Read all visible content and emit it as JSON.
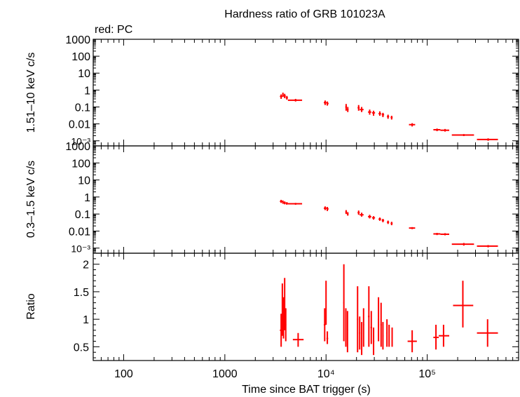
{
  "colors": {
    "series": "#ff0000",
    "axis": "#000000",
    "background": "#ffffff"
  },
  "chart_data": {
    "title": "Hardness ratio of GRB 101023A",
    "subtitle": "red: PC",
    "xlabel": "Time since BAT trigger (s)",
    "x_scale": "log",
    "xlim": [
      50,
      800000
    ],
    "x_ticks": [
      "100",
      "1000",
      "10⁴",
      "10⁵"
    ],
    "panels": [
      {
        "id": "hard",
        "type": "scatter",
        "ylabel": "1.51–10 keV c/s",
        "y_scale": "log",
        "ylim": [
          0.0005,
          1000
        ],
        "y_ticks": [
          "1000",
          "100",
          "10",
          "1",
          "0.1",
          "0.01",
          "10⁻³"
        ],
        "points": [
          {
            "x": 3600,
            "xlo": 3500,
            "xhi": 3700,
            "y": 0.42,
            "ylo": 0.3,
            "yhi": 0.55
          },
          {
            "x": 3750,
            "xlo": 3700,
            "xhi": 3800,
            "y": 0.55,
            "ylo": 0.4,
            "yhi": 0.7
          },
          {
            "x": 3900,
            "xlo": 3800,
            "xhi": 4000,
            "y": 0.45,
            "ylo": 0.33,
            "yhi": 0.6
          },
          {
            "x": 4100,
            "xlo": 4000,
            "xhi": 4200,
            "y": 0.35,
            "ylo": 0.27,
            "yhi": 0.45
          },
          {
            "x": 5000,
            "xlo": 4200,
            "xhi": 5800,
            "y": 0.25,
            "ylo": 0.21,
            "yhi": 0.3
          },
          {
            "x": 9800,
            "xlo": 9500,
            "xhi": 10100,
            "y": 0.18,
            "ylo": 0.13,
            "yhi": 0.24
          },
          {
            "x": 10300,
            "xlo": 10100,
            "xhi": 10600,
            "y": 0.16,
            "ylo": 0.12,
            "yhi": 0.21
          },
          {
            "x": 15800,
            "xlo": 15500,
            "xhi": 16100,
            "y": 0.1,
            "ylo": 0.06,
            "yhi": 0.15
          },
          {
            "x": 16400,
            "xlo": 16100,
            "xhi": 16700,
            "y": 0.07,
            "ylo": 0.05,
            "yhi": 0.1
          },
          {
            "x": 21000,
            "xlo": 20500,
            "xhi": 21500,
            "y": 0.09,
            "ylo": 0.06,
            "yhi": 0.13
          },
          {
            "x": 22500,
            "xlo": 21500,
            "xhi": 23500,
            "y": 0.07,
            "ylo": 0.05,
            "yhi": 0.1
          },
          {
            "x": 27000,
            "xlo": 26000,
            "xhi": 28000,
            "y": 0.05,
            "ylo": 0.035,
            "yhi": 0.07
          },
          {
            "x": 29500,
            "xlo": 28500,
            "xhi": 30500,
            "y": 0.045,
            "ylo": 0.03,
            "yhi": 0.06
          },
          {
            "x": 34000,
            "xlo": 33000,
            "xhi": 35000,
            "y": 0.04,
            "ylo": 0.03,
            "yhi": 0.055
          },
          {
            "x": 36500,
            "xlo": 35500,
            "xhi": 37500,
            "y": 0.035,
            "ylo": 0.025,
            "yhi": 0.045
          },
          {
            "x": 41000,
            "xlo": 40000,
            "xhi": 42000,
            "y": 0.027,
            "ylo": 0.02,
            "yhi": 0.035
          },
          {
            "x": 44500,
            "xlo": 43500,
            "xhi": 45500,
            "y": 0.024,
            "ylo": 0.018,
            "yhi": 0.03
          },
          {
            "x": 71000,
            "xlo": 66000,
            "xhi": 76000,
            "y": 0.009,
            "ylo": 0.007,
            "yhi": 0.011
          },
          {
            "x": 125000,
            "xlo": 115000,
            "xhi": 135000,
            "y": 0.0045,
            "ylo": 0.0037,
            "yhi": 0.0053
          },
          {
            "x": 150000,
            "xlo": 135000,
            "xhi": 165000,
            "y": 0.0042,
            "ylo": 0.0035,
            "yhi": 0.005
          },
          {
            "x": 230000,
            "xlo": 175000,
            "xhi": 290000,
            "y": 0.0022,
            "ylo": 0.0019,
            "yhi": 0.0025
          },
          {
            "x": 400000,
            "xlo": 310000,
            "xhi": 500000,
            "y": 0.0012,
            "ylo": 0.001,
            "yhi": 0.0014
          }
        ]
      },
      {
        "id": "soft",
        "type": "scatter",
        "ylabel": "0.3–1.5 keV c/s",
        "y_scale": "log",
        "ylim": [
          0.0005,
          1000
        ],
        "y_ticks": [
          "1000",
          "100",
          "10",
          "1",
          "0.1",
          "0.01",
          "10⁻³"
        ],
        "points": [
          {
            "x": 3600,
            "xlo": 3500,
            "xhi": 3700,
            "y": 0.55,
            "ylo": 0.45,
            "yhi": 0.68
          },
          {
            "x": 3750,
            "xlo": 3700,
            "xhi": 3800,
            "y": 0.5,
            "ylo": 0.4,
            "yhi": 0.62
          },
          {
            "x": 3900,
            "xlo": 3800,
            "xhi": 4000,
            "y": 0.45,
            "ylo": 0.37,
            "yhi": 0.55
          },
          {
            "x": 4100,
            "xlo": 4000,
            "xhi": 4200,
            "y": 0.42,
            "ylo": 0.35,
            "yhi": 0.5
          },
          {
            "x": 5000,
            "xlo": 4200,
            "xhi": 5800,
            "y": 0.4,
            "ylo": 0.35,
            "yhi": 0.45
          },
          {
            "x": 9800,
            "xlo": 9500,
            "xhi": 10100,
            "y": 0.22,
            "ylo": 0.17,
            "yhi": 0.28
          },
          {
            "x": 10300,
            "xlo": 10100,
            "xhi": 10600,
            "y": 0.2,
            "ylo": 0.15,
            "yhi": 0.26
          },
          {
            "x": 15800,
            "xlo": 15500,
            "xhi": 16100,
            "y": 0.13,
            "ylo": 0.1,
            "yhi": 0.17
          },
          {
            "x": 16400,
            "xlo": 16100,
            "xhi": 16700,
            "y": 0.1,
            "ylo": 0.08,
            "yhi": 0.13
          },
          {
            "x": 21000,
            "xlo": 20500,
            "xhi": 21500,
            "y": 0.12,
            "ylo": 0.09,
            "yhi": 0.16
          },
          {
            "x": 22500,
            "xlo": 21500,
            "xhi": 23500,
            "y": 0.09,
            "ylo": 0.07,
            "yhi": 0.12
          },
          {
            "x": 27000,
            "xlo": 26000,
            "xhi": 28000,
            "y": 0.07,
            "ylo": 0.055,
            "yhi": 0.09
          },
          {
            "x": 29500,
            "xlo": 28500,
            "xhi": 30500,
            "y": 0.06,
            "ylo": 0.047,
            "yhi": 0.075
          },
          {
            "x": 34000,
            "xlo": 33000,
            "xhi": 35000,
            "y": 0.05,
            "ylo": 0.04,
            "yhi": 0.062
          },
          {
            "x": 36500,
            "xlo": 35500,
            "xhi": 37500,
            "y": 0.042,
            "ylo": 0.033,
            "yhi": 0.052
          },
          {
            "x": 41000,
            "xlo": 40000,
            "xhi": 42000,
            "y": 0.033,
            "ylo": 0.026,
            "yhi": 0.041
          },
          {
            "x": 44500,
            "xlo": 43500,
            "xhi": 45500,
            "y": 0.028,
            "ylo": 0.022,
            "yhi": 0.035
          },
          {
            "x": 71000,
            "xlo": 66000,
            "xhi": 76000,
            "y": 0.015,
            "ylo": 0.013,
            "yhi": 0.017
          },
          {
            "x": 125000,
            "xlo": 115000,
            "xhi": 135000,
            "y": 0.0068,
            "ylo": 0.0058,
            "yhi": 0.0078
          },
          {
            "x": 150000,
            "xlo": 135000,
            "xhi": 165000,
            "y": 0.0065,
            "ylo": 0.0056,
            "yhi": 0.0075
          },
          {
            "x": 230000,
            "xlo": 175000,
            "xhi": 290000,
            "y": 0.0017,
            "ylo": 0.0014,
            "yhi": 0.002
          },
          {
            "x": 400000,
            "xlo": 310000,
            "xhi": 500000,
            "y": 0.0013,
            "ylo": 0.0011,
            "yhi": 0.0015
          }
        ]
      },
      {
        "id": "ratio",
        "type": "scatter",
        "ylabel": "Ratio",
        "y_scale": "linear",
        "ylim": [
          0.25,
          2.2
        ],
        "y_ticks": [
          "2",
          "1.5",
          "1",
          "0.5"
        ],
        "y_tick_values": [
          2,
          1.5,
          1,
          0.5
        ],
        "points": [
          {
            "x": 3600,
            "xlo": 3500,
            "xhi": 3700,
            "y": 0.8,
            "ylo": 0.5,
            "yhi": 1.1
          },
          {
            "x": 3700,
            "xlo": 3650,
            "xhi": 3750,
            "y": 1.25,
            "ylo": 0.7,
            "yhi": 1.65
          },
          {
            "x": 3800,
            "xlo": 3750,
            "xhi": 3850,
            "y": 1.0,
            "ylo": 0.65,
            "yhi": 1.4
          },
          {
            "x": 3900,
            "xlo": 3850,
            "xhi": 3950,
            "y": 1.3,
            "ylo": 0.8,
            "yhi": 1.75
          },
          {
            "x": 4000,
            "xlo": 3950,
            "xhi": 4050,
            "y": 0.9,
            "ylo": 0.6,
            "yhi": 1.2
          },
          {
            "x": 5300,
            "xlo": 4700,
            "xhi": 6000,
            "y": 0.63,
            "ylo": 0.5,
            "yhi": 0.75
          },
          {
            "x": 9700,
            "xlo": 9500,
            "xhi": 9900,
            "y": 0.9,
            "ylo": 0.6,
            "yhi": 1.2
          },
          {
            "x": 10000,
            "xlo": 9900,
            "xhi": 10100,
            "y": 1.3,
            "ylo": 0.9,
            "yhi": 1.7
          },
          {
            "x": 10300,
            "xlo": 10100,
            "xhi": 10500,
            "y": 0.65,
            "ylo": 0.55,
            "yhi": 0.78
          },
          {
            "x": 15000,
            "xlo": 14800,
            "xhi": 15200,
            "y": 1.3,
            "ylo": 0.6,
            "yhi": 2.0
          },
          {
            "x": 15700,
            "xlo": 15500,
            "xhi": 15900,
            "y": 0.85,
            "ylo": 0.5,
            "yhi": 1.2
          },
          {
            "x": 16300,
            "xlo": 16100,
            "xhi": 16500,
            "y": 0.8,
            "ylo": 0.4,
            "yhi": 1.15
          },
          {
            "x": 20500,
            "xlo": 20200,
            "xhi": 20800,
            "y": 1.0,
            "ylo": 0.4,
            "yhi": 1.6
          },
          {
            "x": 21500,
            "xlo": 21200,
            "xhi": 21800,
            "y": 0.75,
            "ylo": 0.45,
            "yhi": 1.05
          },
          {
            "x": 22500,
            "xlo": 22200,
            "xhi": 22800,
            "y": 0.65,
            "ylo": 0.35,
            "yhi": 0.95
          },
          {
            "x": 23500,
            "xlo": 23200,
            "xhi": 23800,
            "y": 0.9,
            "ylo": 0.5,
            "yhi": 1.2
          },
          {
            "x": 26500,
            "xlo": 26000,
            "xhi": 27000,
            "y": 1.05,
            "ylo": 0.5,
            "yhi": 1.6
          },
          {
            "x": 28000,
            "xlo": 27500,
            "xhi": 28500,
            "y": 0.85,
            "ylo": 0.55,
            "yhi": 1.15
          },
          {
            "x": 29500,
            "xlo": 29000,
            "xhi": 30000,
            "y": 0.6,
            "ylo": 0.35,
            "yhi": 0.85
          },
          {
            "x": 33000,
            "xlo": 32500,
            "xhi": 33500,
            "y": 1.0,
            "ylo": 0.6,
            "yhi": 1.4
          },
          {
            "x": 35000,
            "xlo": 34500,
            "xhi": 35500,
            "y": 0.9,
            "ylo": 0.5,
            "yhi": 1.3
          },
          {
            "x": 36500,
            "xlo": 36000,
            "xhi": 37000,
            "y": 0.7,
            "ylo": 0.45,
            "yhi": 0.95
          },
          {
            "x": 40000,
            "xlo": 39500,
            "xhi": 40500,
            "y": 0.75,
            "ylo": 0.5,
            "yhi": 1.0
          },
          {
            "x": 42000,
            "xlo": 41500,
            "xhi": 42500,
            "y": 0.7,
            "ylo": 0.5,
            "yhi": 0.9
          },
          {
            "x": 45000,
            "xlo": 44500,
            "xhi": 45500,
            "y": 0.68,
            "ylo": 0.5,
            "yhi": 0.85
          },
          {
            "x": 71000,
            "xlo": 64000,
            "xhi": 79000,
            "y": 0.6,
            "ylo": 0.4,
            "yhi": 0.8
          },
          {
            "x": 122000,
            "xlo": 115000,
            "xhi": 130000,
            "y": 0.67,
            "ylo": 0.45,
            "yhi": 0.9
          },
          {
            "x": 145000,
            "xlo": 130000,
            "xhi": 165000,
            "y": 0.7,
            "ylo": 0.5,
            "yhi": 0.9
          },
          {
            "x": 225000,
            "xlo": 180000,
            "xhi": 285000,
            "y": 1.25,
            "ylo": 0.85,
            "yhi": 1.7
          },
          {
            "x": 395000,
            "xlo": 310000,
            "xhi": 500000,
            "y": 0.75,
            "ylo": 0.5,
            "yhi": 1.0
          }
        ]
      }
    ]
  }
}
